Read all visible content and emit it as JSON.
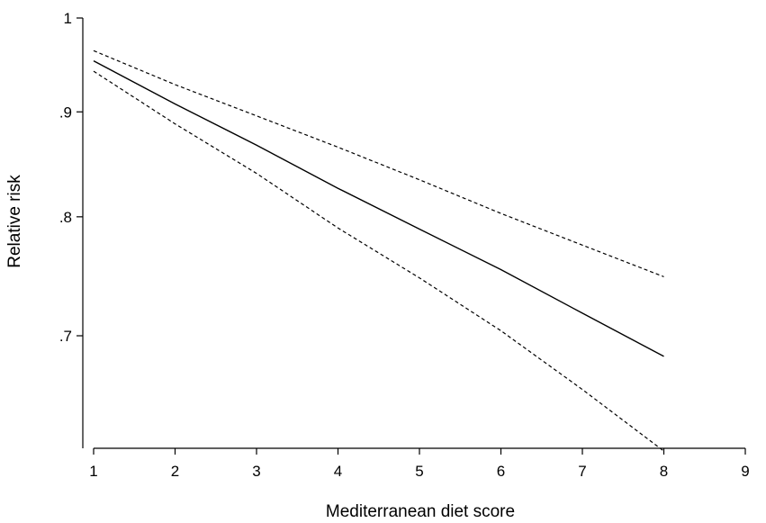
{
  "chart_data": {
    "type": "line",
    "title": "",
    "xlabel": "Mediterranean diet score",
    "ylabel": "Relative risk",
    "xlim": [
      1,
      9
    ],
    "ylim": [
      0.62,
      1.0
    ],
    "xscale": "linear",
    "yscale": "log",
    "grid": false,
    "legend": "none",
    "x_ticks": [
      1,
      2,
      3,
      4,
      5,
      6,
      7,
      8,
      9
    ],
    "x_tick_labels": [
      "1",
      "2",
      "3",
      "4",
      "5",
      "6",
      "7",
      "8",
      "9"
    ],
    "y_ticks": [
      1.0,
      0.9,
      0.8,
      0.7
    ],
    "y_tick_labels": [
      "1",
      ".9",
      ".8",
      ".7"
    ],
    "series": [
      {
        "style": "solid",
        "color": "#000000",
        "x": [
          1,
          2,
          3,
          4,
          5,
          6,
          7,
          8
        ],
        "y": [
          0.953,
          0.908,
          0.867,
          0.826,
          0.789,
          0.754,
          0.718,
          0.684
        ]
      },
      {
        "style": "dashed",
        "color": "#000000",
        "x": [
          1,
          2,
          3,
          4,
          5,
          6,
          7,
          8
        ],
        "y": [
          0.964,
          0.928,
          0.896,
          0.865,
          0.834,
          0.803,
          0.775,
          0.748
        ]
      },
      {
        "style": "dashed",
        "color": "#000000",
        "x": [
          1,
          2,
          3,
          4,
          5,
          6,
          7,
          8
        ],
        "y": [
          0.942,
          0.888,
          0.84,
          0.79,
          0.747,
          0.704,
          0.659,
          0.615
        ]
      }
    ]
  }
}
